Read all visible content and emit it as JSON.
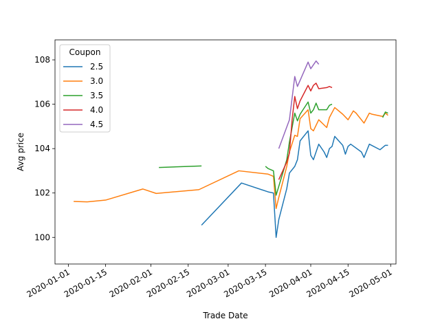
{
  "chart_data": {
    "type": "line",
    "xlabel": "Trade Date",
    "ylabel": "Avg price",
    "x_axis": {
      "type": "date",
      "range": [
        "2019-12-27",
        "2020-05-03"
      ],
      "ticks": [
        "2020-01-01",
        "2020-01-15",
        "2020-02-01",
        "2020-02-15",
        "2020-03-01",
        "2020-03-15",
        "2020-04-01",
        "2020-04-15",
        "2020-05-01"
      ]
    },
    "y_axis": {
      "range": [
        98.8,
        108.9
      ],
      "ticks": [
        100,
        102,
        104,
        106,
        108
      ]
    },
    "grid": false,
    "legend": {
      "title": "Coupon",
      "placement": "upper-left"
    },
    "series": [
      {
        "name": "2.5",
        "color": "#1f77b4",
        "points": [
          [
            "2020-02-20",
            100.55
          ],
          [
            "2020-03-06",
            102.45
          ],
          [
            "2020-03-16",
            102.05
          ],
          [
            "2020-03-18",
            102.0
          ],
          [
            "2020-03-19",
            100.0
          ],
          [
            "2020-03-20",
            100.8
          ],
          [
            "2020-03-23",
            102.2
          ],
          [
            "2020-03-24",
            102.9
          ],
          [
            "2020-03-26",
            103.2
          ],
          [
            "2020-03-27",
            103.5
          ],
          [
            "2020-03-28",
            104.35
          ],
          [
            "2020-03-31",
            104.8
          ],
          [
            "2020-04-01",
            103.7
          ],
          [
            "2020-04-02",
            103.5
          ],
          [
            "2020-04-04",
            104.2
          ],
          [
            "2020-04-06",
            103.85
          ],
          [
            "2020-04-07",
            103.6
          ],
          [
            "2020-04-08",
            104.0
          ],
          [
            "2020-04-09",
            104.1
          ],
          [
            "2020-04-10",
            104.55
          ],
          [
            "2020-04-13",
            104.15
          ],
          [
            "2020-04-14",
            103.75
          ],
          [
            "2020-04-15",
            104.1
          ],
          [
            "2020-04-16",
            104.2
          ],
          [
            "2020-04-20",
            103.85
          ],
          [
            "2020-04-21",
            103.6
          ],
          [
            "2020-04-23",
            104.2
          ],
          [
            "2020-04-27",
            103.95
          ],
          [
            "2020-04-29",
            104.15
          ],
          [
            "2020-04-30",
            104.15
          ]
        ]
      },
      {
        "name": "3.0",
        "color": "#ff7f0e",
        "points": [
          [
            "2020-01-03",
            101.62
          ],
          [
            "2020-01-08",
            101.6
          ],
          [
            "2020-01-15",
            101.68
          ],
          [
            "2020-01-29",
            102.18
          ],
          [
            "2020-02-03",
            101.98
          ],
          [
            "2020-02-19",
            102.15
          ],
          [
            "2020-03-05",
            103.0
          ],
          [
            "2020-03-16",
            102.85
          ],
          [
            "2020-03-18",
            102.75
          ],
          [
            "2020-03-19",
            101.3
          ],
          [
            "2020-03-20",
            101.8
          ],
          [
            "2020-03-23",
            103.2
          ],
          [
            "2020-03-24",
            103.85
          ],
          [
            "2020-03-26",
            104.6
          ],
          [
            "2020-03-27",
            104.55
          ],
          [
            "2020-03-28",
            105.35
          ],
          [
            "2020-03-31",
            105.75
          ],
          [
            "2020-04-01",
            104.9
          ],
          [
            "2020-04-02",
            104.8
          ],
          [
            "2020-04-04",
            105.3
          ],
          [
            "2020-04-07",
            104.95
          ],
          [
            "2020-04-08",
            105.4
          ],
          [
            "2020-04-10",
            105.85
          ],
          [
            "2020-04-13",
            105.55
          ],
          [
            "2020-04-15",
            105.3
          ],
          [
            "2020-04-17",
            105.7
          ],
          [
            "2020-04-18",
            105.6
          ],
          [
            "2020-04-21",
            105.15
          ],
          [
            "2020-04-23",
            105.6
          ],
          [
            "2020-04-24",
            105.55
          ],
          [
            "2020-04-28",
            105.45
          ],
          [
            "2020-04-29",
            105.6
          ],
          [
            "2020-04-30",
            105.5
          ]
        ]
      },
      {
        "name": "3.5",
        "color": "#2ca02c",
        "points_segments": [
          [
            [
              "2020-02-04",
              103.15
            ],
            [
              "2020-02-20",
              103.22
            ]
          ],
          [
            [
              "2020-03-15",
              103.2
            ],
            [
              "2020-03-16",
              103.1
            ],
            [
              "2020-03-18",
              103.0
            ],
            [
              "2020-03-19",
              101.9
            ],
            [
              "2020-03-20",
              102.3
            ],
            [
              "2020-03-23",
              103.5
            ],
            [
              "2020-03-24",
              104.3
            ],
            [
              "2020-03-26",
              105.6
            ],
            [
              "2020-03-27",
              105.25
            ],
            [
              "2020-03-28",
              105.55
            ],
            [
              "2020-03-31",
              106.1
            ],
            [
              "2020-04-01",
              105.6
            ],
            [
              "2020-04-02",
              105.75
            ],
            [
              "2020-04-03",
              106.05
            ],
            [
              "2020-04-04",
              105.75
            ],
            [
              "2020-04-07",
              105.75
            ],
            [
              "2020-04-08",
              105.95
            ],
            [
              "2020-04-09",
              106.0
            ]
          ],
          [
            [
              "2020-04-28",
              105.4
            ],
            [
              "2020-04-29",
              105.65
            ],
            [
              "2020-04-30",
              105.6
            ]
          ]
        ]
      },
      {
        "name": "4.0",
        "color": "#d62728",
        "points": [
          [
            "2020-03-20",
            102.6
          ],
          [
            "2020-03-23",
            103.4
          ],
          [
            "2020-03-24",
            103.8
          ],
          [
            "2020-03-25",
            105.3
          ],
          [
            "2020-03-26",
            106.35
          ],
          [
            "2020-03-27",
            105.8
          ],
          [
            "2020-03-28",
            106.15
          ],
          [
            "2020-03-31",
            106.85
          ],
          [
            "2020-04-01",
            106.6
          ],
          [
            "2020-04-02",
            106.85
          ],
          [
            "2020-04-03",
            106.95
          ],
          [
            "2020-04-04",
            106.7
          ],
          [
            "2020-04-07",
            106.75
          ],
          [
            "2020-04-08",
            106.8
          ],
          [
            "2020-04-09",
            106.75
          ]
        ]
      },
      {
        "name": "4.5",
        "color": "#9467bd",
        "points": [
          [
            "2020-03-20",
            104.0
          ],
          [
            "2020-03-24",
            105.3
          ],
          [
            "2020-03-26",
            107.25
          ],
          [
            "2020-03-27",
            106.8
          ],
          [
            "2020-03-31",
            107.9
          ],
          [
            "2020-04-01",
            107.6
          ],
          [
            "2020-04-03",
            107.95
          ],
          [
            "2020-04-04",
            107.8
          ]
        ]
      }
    ]
  }
}
